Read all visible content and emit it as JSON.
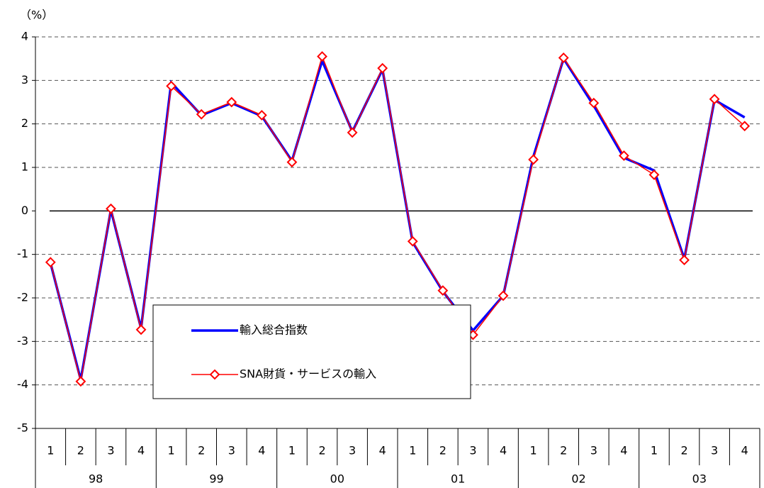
{
  "chart_data": {
    "type": "line",
    "y_unit_label": "（%）",
    "categories": [
      "1",
      "2",
      "3",
      "4",
      "1",
      "2",
      "3",
      "4",
      "1",
      "2",
      "3",
      "4",
      "1",
      "2",
      "3",
      "4",
      "1",
      "2",
      "3",
      "4",
      "1",
      "2",
      "3",
      "4"
    ],
    "groups": [
      "98",
      "99",
      "00",
      "01",
      "02",
      "03"
    ],
    "series": [
      {
        "name": "輸入総合指数",
        "color": "#0000ff",
        "values": [
          -1.2,
          -3.88,
          0.02,
          -2.7,
          2.95,
          2.2,
          2.48,
          2.18,
          1.15,
          3.45,
          1.82,
          3.25,
          -0.72,
          -1.85,
          -2.75,
          -1.95,
          1.25,
          3.5,
          2.42,
          1.22,
          0.93,
          -1.1,
          2.55,
          2.15
        ]
      },
      {
        "name": "SNA財貨・サービスの輸入",
        "color": "#ff0000",
        "values": [
          -1.18,
          -3.92,
          0.05,
          -2.73,
          2.87,
          2.22,
          2.5,
          2.2,
          1.12,
          3.55,
          1.8,
          3.28,
          -0.7,
          -1.83,
          -2.85,
          -1.95,
          1.18,
          3.52,
          2.48,
          1.27,
          0.83,
          -1.13,
          2.57,
          1.95
        ]
      }
    ],
    "ylim": [
      -5,
      4
    ],
    "yticks": [
      -5,
      -4,
      -3,
      -2,
      -1,
      0,
      1,
      2,
      3,
      4
    ],
    "grid": true
  }
}
